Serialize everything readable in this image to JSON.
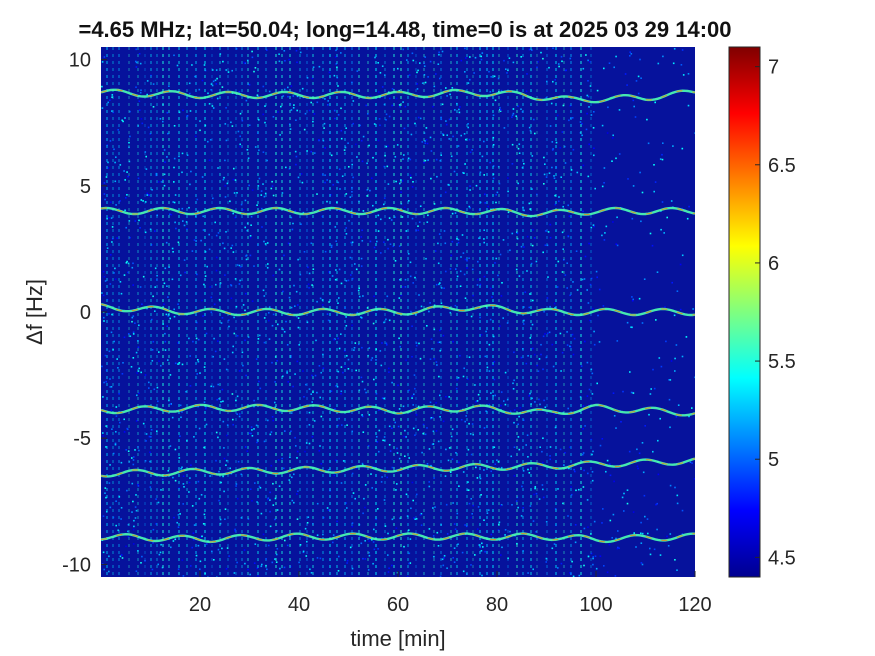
{
  "chart_data": {
    "type": "heatmap",
    "title": "=4.65 MHz;  lat=50.04; long=14.48, time=0 is at 2025 03 29 14:00",
    "xlabel": "time [min]",
    "ylabel": "Δf [Hz]",
    "xlim": [
      0,
      120
    ],
    "ylim": [
      -10.5,
      10.5
    ],
    "x_ticks": [
      20,
      40,
      60,
      80,
      100,
      120
    ],
    "x_tick_labels": [
      "20",
      "40",
      "60",
      "80",
      "100",
      "120"
    ],
    "y_ticks": [
      -10,
      -5,
      0,
      5,
      10
    ],
    "y_tick_labels": [
      "-10",
      "-5",
      "0",
      "5",
      "10"
    ],
    "colorbar": {
      "range": [
        4.4,
        7.1
      ],
      "ticks": [
        4.5,
        5,
        5.5,
        6,
        6.5,
        7
      ],
      "tick_labels": [
        "4.5",
        "5",
        "5.5",
        "6",
        "6.5",
        "7"
      ],
      "colormap": "jet"
    },
    "traces": [
      {
        "freq": 8.7,
        "points": [
          [
            0,
            8.7
          ],
          [
            20,
            8.6
          ],
          [
            40,
            8.6
          ],
          [
            60,
            8.6
          ],
          [
            75,
            8.7
          ],
          [
            85,
            8.6
          ],
          [
            95,
            8.4
          ],
          [
            110,
            8.5
          ],
          [
            120,
            8.7
          ]
        ]
      },
      {
        "freq": 4.0,
        "points": [
          [
            0,
            4.0
          ],
          [
            20,
            4.0
          ],
          [
            40,
            4.0
          ],
          [
            60,
            4.0
          ],
          [
            75,
            4.0
          ],
          [
            90,
            3.9
          ],
          [
            100,
            4.0
          ],
          [
            120,
            4.0
          ]
        ]
      },
      {
        "freq": 0.1,
        "points": [
          [
            0,
            0.2
          ],
          [
            20,
            0.0
          ],
          [
            40,
            0.0
          ],
          [
            60,
            0.0
          ],
          [
            75,
            0.2
          ],
          [
            90,
            0.0
          ],
          [
            100,
            0.0
          ],
          [
            120,
            0.0
          ]
        ]
      },
      {
        "freq": -3.9,
        "points": [
          [
            0,
            -3.9
          ],
          [
            20,
            -3.8
          ],
          [
            40,
            -3.8
          ],
          [
            60,
            -3.9
          ],
          [
            75,
            -3.8
          ],
          [
            90,
            -4.0
          ],
          [
            100,
            -3.8
          ],
          [
            120,
            -4.0
          ]
        ]
      },
      {
        "freq": -6.3,
        "points": [
          [
            0,
            -6.4
          ],
          [
            30,
            -6.3
          ],
          [
            60,
            -6.2
          ],
          [
            90,
            -6.1
          ],
          [
            120,
            -5.9
          ]
        ]
      },
      {
        "freq": -9.0,
        "points": [
          [
            0,
            -8.9
          ],
          [
            20,
            -9.0
          ],
          [
            40,
            -8.9
          ],
          [
            60,
            -8.9
          ],
          [
            80,
            -8.9
          ],
          [
            90,
            -8.9
          ],
          [
            100,
            -9.0
          ],
          [
            120,
            -8.9
          ]
        ]
      }
    ],
    "background_level": 4.5,
    "vertical_stripes_until_min": 100
  }
}
